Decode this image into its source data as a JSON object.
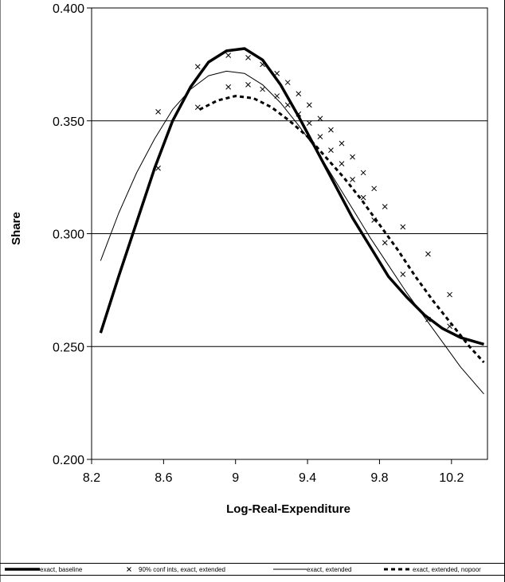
{
  "chart_data": {
    "type": "line",
    "title": "",
    "xlabel": "Log-Real-Expenditure",
    "ylabel": "Share",
    "xlim": [
      8.2,
      10.4
    ],
    "ylim": [
      0.2,
      0.4
    ],
    "x_ticks": [
      8.2,
      8.6,
      9,
      9.4,
      9.8,
      10.2
    ],
    "x_tick_labels": [
      "8.2",
      "8.6",
      "9",
      "9.4",
      "9.8",
      "10.2"
    ],
    "y_ticks": [
      0.2,
      0.25,
      0.3,
      0.35,
      0.4
    ],
    "y_tick_labels": [
      "0.200",
      "0.250",
      "0.300",
      "0.350",
      "0.400"
    ],
    "grid": "horizontal",
    "legend_position": "bottom",
    "series": [
      {
        "name": "exact, baseline",
        "style": "thick-solid",
        "color": "#000000",
        "x": [
          8.25,
          8.35,
          8.45,
          8.55,
          8.65,
          8.75,
          8.85,
          8.95,
          9.05,
          9.15,
          9.25,
          9.35,
          9.45,
          9.55,
          9.65,
          9.75,
          9.85,
          9.95,
          10.05,
          10.15,
          10.25,
          10.38
        ],
        "y": [
          0.256,
          0.281,
          0.305,
          0.329,
          0.35,
          0.365,
          0.376,
          0.381,
          0.382,
          0.377,
          0.366,
          0.352,
          0.337,
          0.322,
          0.307,
          0.294,
          0.281,
          0.272,
          0.264,
          0.258,
          0.254,
          0.251
        ]
      },
      {
        "name": "90% conf ints, exact, extended",
        "style": "x-markers",
        "color": "#000000",
        "x": [
          8.57,
          8.79,
          8.96,
          9.07,
          9.15,
          9.23,
          9.29,
          9.35,
          9.41,
          9.47,
          9.53,
          9.59,
          9.65,
          9.71,
          9.77,
          9.83,
          9.93,
          10.07,
          10.19,
          8.57,
          8.79,
          8.96,
          9.07,
          9.15,
          9.23,
          9.29,
          9.35,
          9.41,
          9.47,
          9.53,
          9.59,
          9.65,
          9.71,
          9.77,
          9.83,
          9.93,
          10.07,
          10.19
        ],
        "y": [
          0.354,
          0.374,
          0.379,
          0.378,
          0.375,
          0.371,
          0.367,
          0.362,
          0.357,
          0.351,
          0.346,
          0.34,
          0.334,
          0.327,
          0.32,
          0.312,
          0.303,
          0.291,
          0.273,
          0.329,
          0.356,
          0.365,
          0.366,
          0.364,
          0.361,
          0.357,
          0.353,
          0.349,
          0.343,
          0.337,
          0.331,
          0.324,
          0.316,
          0.306,
          0.296,
          0.282,
          0.262,
          0.259
        ]
      },
      {
        "name": "exact, extended",
        "style": "thin-solid",
        "color": "#000000",
        "x": [
          8.25,
          8.35,
          8.45,
          8.55,
          8.65,
          8.75,
          8.85,
          8.95,
          9.05,
          9.15,
          9.25,
          9.35,
          9.45,
          9.55,
          9.65,
          9.75,
          9.85,
          9.95,
          10.05,
          10.15,
          10.25,
          10.38
        ],
        "y": [
          0.288,
          0.309,
          0.327,
          0.342,
          0.355,
          0.364,
          0.37,
          0.372,
          0.371,
          0.366,
          0.358,
          0.348,
          0.337,
          0.324,
          0.311,
          0.298,
          0.286,
          0.274,
          0.263,
          0.252,
          0.241,
          0.229
        ]
      },
      {
        "name": "exact, extended, nopoor",
        "style": "thick-dashed",
        "color": "#000000",
        "x": [
          8.8,
          8.9,
          9.0,
          9.1,
          9.2,
          9.3,
          9.4,
          9.5,
          9.6,
          9.7,
          9.8,
          9.9,
          10.0,
          10.1,
          10.2,
          10.3,
          10.38
        ],
        "y": [
          0.355,
          0.359,
          0.361,
          0.36,
          0.356,
          0.35,
          0.343,
          0.334,
          0.325,
          0.315,
          0.304,
          0.293,
          0.281,
          0.27,
          0.26,
          0.25,
          0.243
        ]
      }
    ]
  }
}
